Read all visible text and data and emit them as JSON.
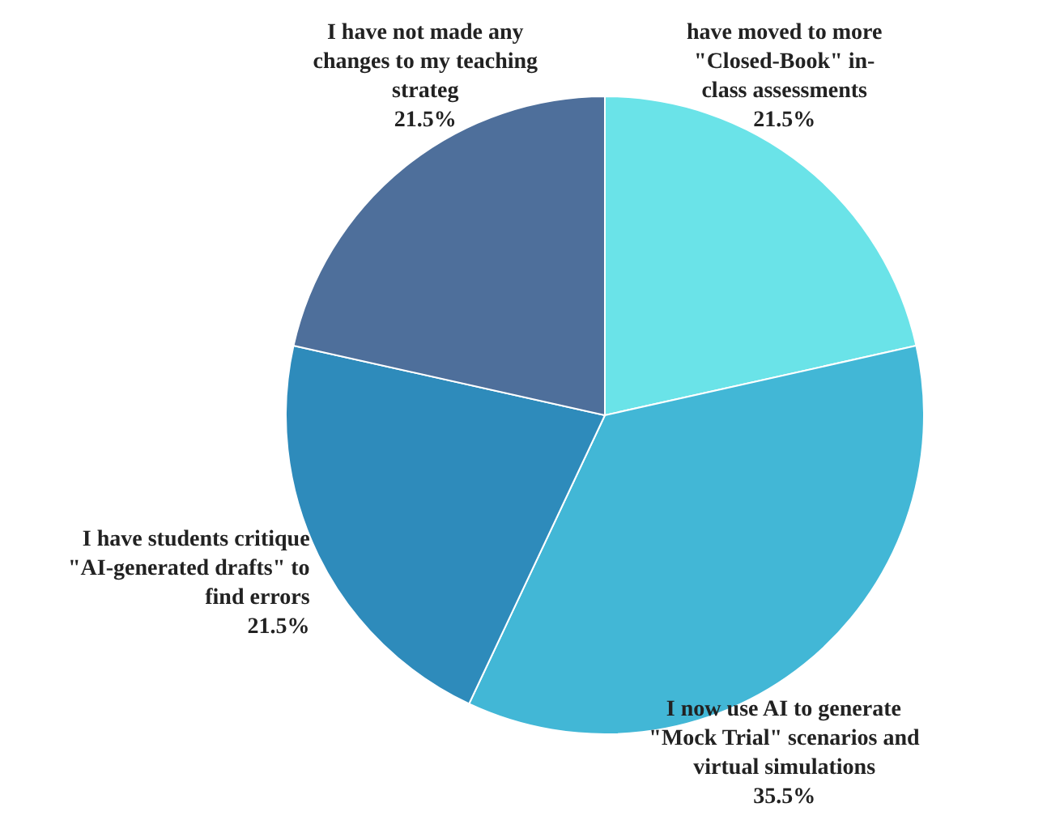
{
  "chart_data": {
    "type": "pie",
    "categories": [
      "have moved to more\n\"Closed-Book\" in-\nclass assessments",
      "I now use AI to generate\n\"Mock Trial\" scenarios and\nvirtual simulations",
      "I have students critique\n\"AI-generated drafts\" to\nfind errors",
      "I have not made any\nchanges to my teaching\nstrateg"
    ],
    "values": [
      21.5,
      35.5,
      21.5,
      21.5
    ],
    "colors": [
      "#6ae3e8",
      "#42b7d6",
      "#2e8bbb",
      "#4e6f9b"
    ],
    "value_labels": [
      "21.5%",
      "35.5%",
      "21.5%",
      "21.5%"
    ]
  }
}
